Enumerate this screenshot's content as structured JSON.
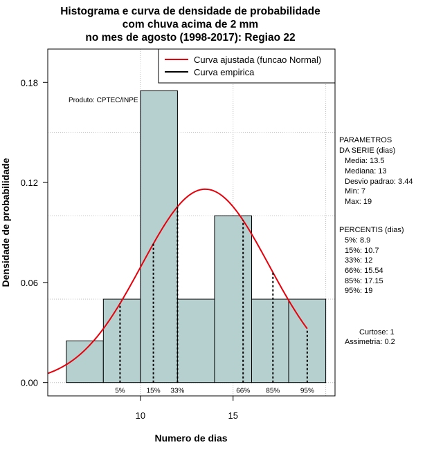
{
  "colors": {
    "bar_fill": "#b6cfcf",
    "bar_stroke": "#000000",
    "fitted": "#e8000b",
    "grid": "#bebebe",
    "empirical": "#000000"
  },
  "chart_data": {
    "type": "bar",
    "title": [
      "Histograma e curva de densidade de probabilidade",
      "com chuva acima de 2 mm",
      "no mes de agosto (1998-2017): Regiao 22"
    ],
    "xlabel": "Numero de dias",
    "ylabel": "Densidade de probabilidade",
    "xlim": [
      5.0,
      20.5
    ],
    "ylim": [
      -0.008,
      0.2
    ],
    "x_ticks": [
      10,
      15
    ],
    "x_tick_labels": [
      "10",
      "15"
    ],
    "y_ticks": [
      0.0,
      0.06,
      0.12,
      0.18
    ],
    "y_tick_labels": [
      "0.00",
      "0.06",
      "0.12",
      "0.18"
    ],
    "grid": true,
    "grid_x": [
      10,
      15,
      20
    ],
    "grid_y": [
      0.0,
      0.05,
      0.1,
      0.15,
      0.2
    ],
    "bins": [
      {
        "start": 6,
        "end": 8,
        "density": 0.025
      },
      {
        "start": 8,
        "end": 10,
        "density": 0.05
      },
      {
        "start": 10,
        "end": 12,
        "density": 0.175
      },
      {
        "start": 12,
        "end": 14,
        "density": 0.05
      },
      {
        "start": 14,
        "end": 16,
        "density": 0.1
      },
      {
        "start": 16,
        "end": 18,
        "density": 0.05
      },
      {
        "start": 18,
        "end": 20,
        "density": 0.05
      }
    ],
    "fitted_curve": {
      "name": "Curva ajustada (funcao Normal)",
      "mean": 13.5,
      "sd": 3.44,
      "x_range": [
        5.0,
        19.0
      ]
    },
    "empirical_curve": {
      "name": "Curva empirica"
    },
    "percentiles": [
      {
        "label": "5%",
        "value": 8.9
      },
      {
        "label": "15%",
        "value": 10.7
      },
      {
        "label": "33%",
        "value": 12
      },
      {
        "label": "66%",
        "value": 15.54
      },
      {
        "label": "85%",
        "value": 17.15
      },
      {
        "label": "95%",
        "value": 19
      }
    ],
    "legend": {
      "position": "top-right",
      "items": [
        "Curva ajustada (funcao Normal)",
        "Curva empirica"
      ]
    },
    "annotation": "Produto: CPTEC/INPE"
  },
  "side_panel": {
    "params_title": [
      "PARAMETROS",
      "DA SERIE (dias)"
    ],
    "params": [
      "Media: 13.5",
      "Mediana: 13",
      "Desvio padrao: 3.44",
      "Min: 7",
      "Max: 19"
    ],
    "percentis_title": "PERCENTIS (dias)",
    "percentis": [
      "5%: 8.9",
      "15%: 10.7",
      "33%: 12",
      "66%: 15.54",
      "85%: 17.15",
      "95%: 19"
    ],
    "curtose": "Curtose: 1",
    "assimetria": "Assimetria: 0.2"
  }
}
